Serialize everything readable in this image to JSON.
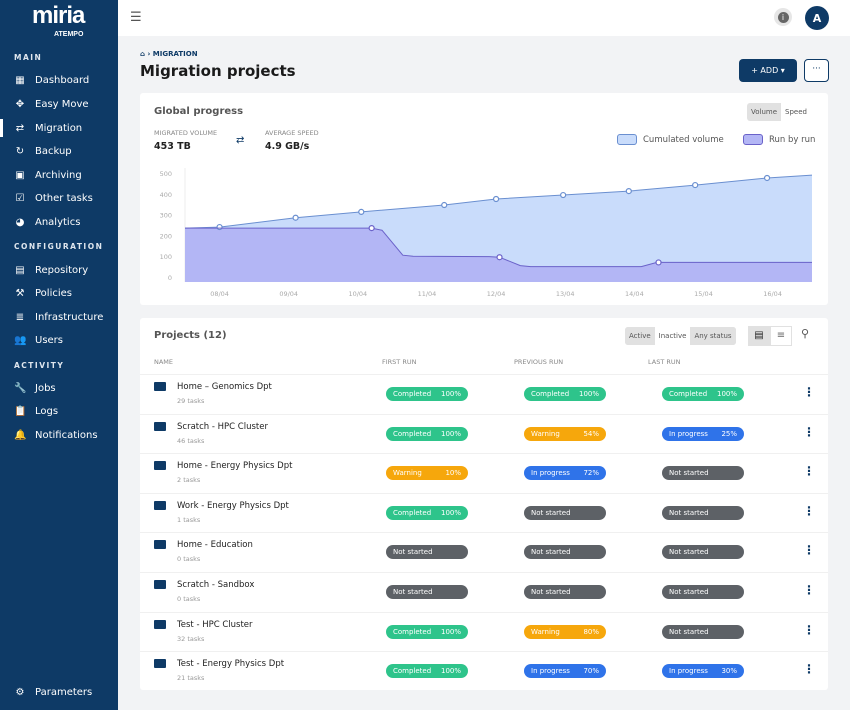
{
  "sidebar": {
    "logo": "miria",
    "logo_sub": "ATEMPO",
    "sections": [
      "MAIN",
      "CONFIGURATION",
      "ACTIVITY"
    ],
    "items": [
      {
        "label": "Dashboard",
        "icon": "dashboard-icon"
      },
      {
        "label": "Easy Move",
        "icon": "easy-move-icon"
      },
      {
        "label": "Migration",
        "icon": "migration-icon",
        "active": true
      },
      {
        "label": "Backup",
        "icon": "backup-icon"
      },
      {
        "label": "Archiving",
        "icon": "archive-icon"
      },
      {
        "label": "Other tasks",
        "icon": "tasks-icon"
      },
      {
        "label": "Analytics",
        "icon": "pie-chart-icon"
      },
      {
        "label": "Repository",
        "icon": "repository-icon"
      },
      {
        "label": "Policies",
        "icon": "gavel-icon"
      },
      {
        "label": "Infrastructure",
        "icon": "server-icon"
      },
      {
        "label": "Users",
        "icon": "users-icon"
      },
      {
        "label": "Jobs",
        "icon": "wrench-icon"
      },
      {
        "label": "Logs",
        "icon": "clipboard-icon"
      },
      {
        "label": "Notifications",
        "icon": "bell-icon"
      }
    ],
    "parameters": "Parameters"
  },
  "topbar": {
    "avatar": "A",
    "info": "i"
  },
  "breadcrumb": "MIGRATION",
  "page_title": "Migration projects",
  "add_label": "+ ADD ▾",
  "more_label": "···",
  "global": {
    "title": "Global progress",
    "toggle": [
      "Volume",
      "Speed"
    ],
    "toggle_selected": "Volume",
    "migrated_label": "MIGRATED VOLUME",
    "migrated_value": "453 TB",
    "speed_label": "AVERAGE SPEED",
    "speed_value": "4.9 GB/s"
  },
  "chart_data": {
    "type": "area",
    "ylim": [
      0,
      500
    ],
    "yticks": [
      "0",
      "100",
      "200",
      "300",
      "400",
      "500"
    ],
    "xticks": [
      "08/04",
      "09/04",
      "10/04",
      "11/04",
      "12/04",
      "13/04",
      "14/04",
      "15/04",
      "16/04"
    ],
    "x_unit": "day of April",
    "xlim": [
      7.5,
      16.57
    ],
    "grid": false,
    "legend": "top-right",
    "series": [
      {
        "name": "Cumulated volume",
        "color": "#c9dcfb",
        "line": "#6a8fd0",
        "points": [
          [
            7.5,
            235
          ],
          [
            8,
            240
          ],
          [
            9.1,
            285
          ],
          [
            10.05,
            313
          ],
          [
            11.25,
            346
          ],
          [
            12,
            375
          ],
          [
            12.97,
            394
          ],
          [
            13.92,
            413
          ],
          [
            14.88,
            442
          ],
          [
            15.92,
            476
          ],
          [
            16.57,
            490
          ]
        ],
        "markers": [
          1,
          2,
          3,
          4,
          5,
          6,
          7,
          8,
          9
        ]
      },
      {
        "name": "Run by run",
        "color": "#b3b6f5",
        "line": "#6a62c9",
        "points": [
          [
            7.5,
            235
          ],
          [
            10.2,
            235
          ],
          [
            10.35,
            225
          ],
          [
            10.65,
            105
          ],
          [
            10.8,
            100
          ],
          [
            11.9,
            98
          ],
          [
            12.05,
            95
          ],
          [
            12.35,
            55
          ],
          [
            12.5,
            50
          ],
          [
            14.1,
            50
          ],
          [
            14.3,
            68
          ],
          [
            14.35,
            70
          ],
          [
            16.57,
            70
          ]
        ],
        "markers": [
          1,
          6,
          11
        ]
      }
    ]
  },
  "projects": {
    "title": "Projects (12)",
    "filters": [
      "Active",
      "Inactive",
      "Any status"
    ],
    "columns": [
      "NAME",
      "FIRST RUN",
      "PREVIOUS RUN",
      "LAST RUN"
    ],
    "rows": [
      {
        "name": "Home – Genomics Dpt",
        "tasks": "29 tasks",
        "runs": [
          [
            "Completed",
            "100%"
          ],
          [
            "Completed",
            "100%"
          ],
          [
            "Completed",
            "100%"
          ]
        ]
      },
      {
        "name": "Scratch - HPC Cluster",
        "tasks": "46 tasks",
        "runs": [
          [
            "Completed",
            "100%"
          ],
          [
            "Warning",
            "54%"
          ],
          [
            "In progress",
            "25%"
          ]
        ]
      },
      {
        "name": "Home - Energy Physics Dpt",
        "tasks": "2 tasks",
        "runs": [
          [
            "Warning",
            "10%"
          ],
          [
            "In progress",
            "72%"
          ],
          [
            "Not started",
            ""
          ]
        ]
      },
      {
        "name": "Work - Energy Physics Dpt",
        "tasks": "1 tasks",
        "runs": [
          [
            "Completed",
            "100%"
          ],
          [
            "Not started",
            ""
          ],
          [
            "Not started",
            ""
          ]
        ]
      },
      {
        "name": "Home - Education",
        "tasks": "0 tasks",
        "runs": [
          [
            "Not started",
            ""
          ],
          [
            "Not started",
            ""
          ],
          [
            "Not started",
            ""
          ]
        ]
      },
      {
        "name": "Scratch - Sandbox",
        "tasks": "0 tasks",
        "runs": [
          [
            "Not started",
            ""
          ],
          [
            "Not started",
            ""
          ],
          [
            "Not started",
            ""
          ]
        ]
      },
      {
        "name": "Test - HPC Cluster",
        "tasks": "32 tasks",
        "runs": [
          [
            "Completed",
            "100%"
          ],
          [
            "Warning",
            "80%"
          ],
          [
            "Not started",
            ""
          ]
        ]
      },
      {
        "name": "Test - Energy Physics Dpt",
        "tasks": "21 tasks",
        "runs": [
          [
            "Completed",
            "100%"
          ],
          [
            "In progress",
            "70%"
          ],
          [
            "In progress",
            "30%"
          ]
        ]
      }
    ]
  },
  "status_colors": {
    "Completed": "#2ec48b",
    "Warning": "#f6a70c",
    "In progress": "#2f73e9",
    "Not started": "#5d6166"
  }
}
